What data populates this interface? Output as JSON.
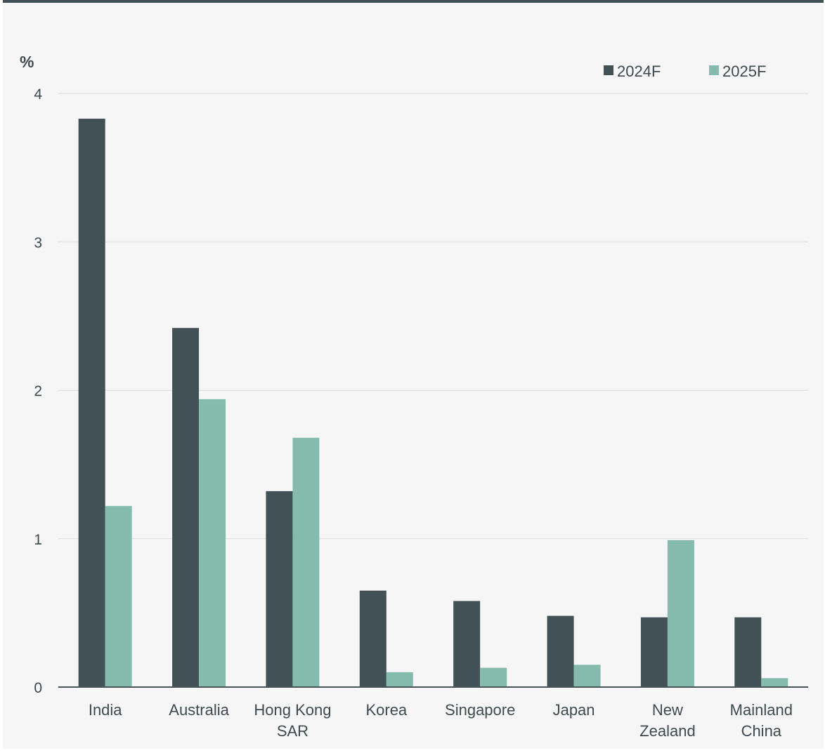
{
  "chart_data": {
    "type": "bar",
    "ylabel": "%",
    "ylim": [
      0,
      4
    ],
    "yticks": [
      "0",
      "1",
      "2",
      "3",
      "4"
    ],
    "categories": [
      [
        "India"
      ],
      [
        "Australia"
      ],
      [
        "Hong Kong",
        "SAR"
      ],
      [
        "Korea"
      ],
      [
        "Singapore"
      ],
      [
        "Japan"
      ],
      [
        "New",
        "Zealand"
      ],
      [
        "Mainland",
        "China"
      ]
    ],
    "series": [
      {
        "name": "2024F",
        "color": "#415156",
        "values": [
          3.83,
          2.42,
          1.32,
          0.65,
          0.58,
          0.48,
          0.47,
          0.47
        ]
      },
      {
        "name": "2025F",
        "color": "#84bbad",
        "values": [
          1.22,
          1.94,
          1.68,
          0.1,
          0.13,
          0.15,
          0.99,
          0.06
        ]
      }
    ],
    "legend_position": "top-right",
    "grid": true
  }
}
